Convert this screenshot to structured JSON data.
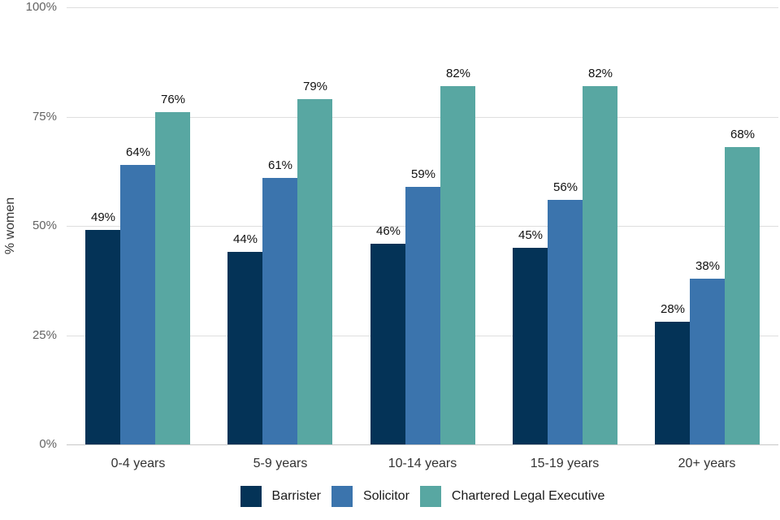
{
  "chart_data": {
    "type": "bar",
    "title": "",
    "xlabel": "",
    "ylabel": "% women",
    "ylim": [
      0,
      100
    ],
    "yticks": [
      0,
      25,
      50,
      75,
      100
    ],
    "ytick_labels": [
      "0%",
      "25%",
      "50%",
      "75%",
      "100%"
    ],
    "categories": [
      "0-4 years",
      "5-9 years",
      "10-14 years",
      "15-19 years",
      "20+ years"
    ],
    "series": [
      {
        "name": "Barrister",
        "color": "#043357",
        "values": [
          49,
          44,
          46,
          45,
          28
        ]
      },
      {
        "name": "Solicitor",
        "color": "#3b74ad",
        "values": [
          64,
          61,
          59,
          56,
          38
        ]
      },
      {
        "name": "Chartered Legal Executive",
        "color": "#58a7a2",
        "values": [
          76,
          79,
          82,
          82,
          68
        ]
      }
    ],
    "value_labels": [
      [
        "49%",
        "44%",
        "46%",
        "45%",
        "28%"
      ],
      [
        "64%",
        "61%",
        "59%",
        "56%",
        "38%"
      ],
      [
        "76%",
        "79%",
        "82%",
        "82%",
        "68%"
      ]
    ],
    "grid": true,
    "legend_position": "bottom",
    "colors": {
      "gridline": "#dedede",
      "baseline": "#c8c8c8",
      "tick_text": "#636363",
      "axis_text": "#333333",
      "value_text": "#111111",
      "background": "#ffffff"
    }
  }
}
